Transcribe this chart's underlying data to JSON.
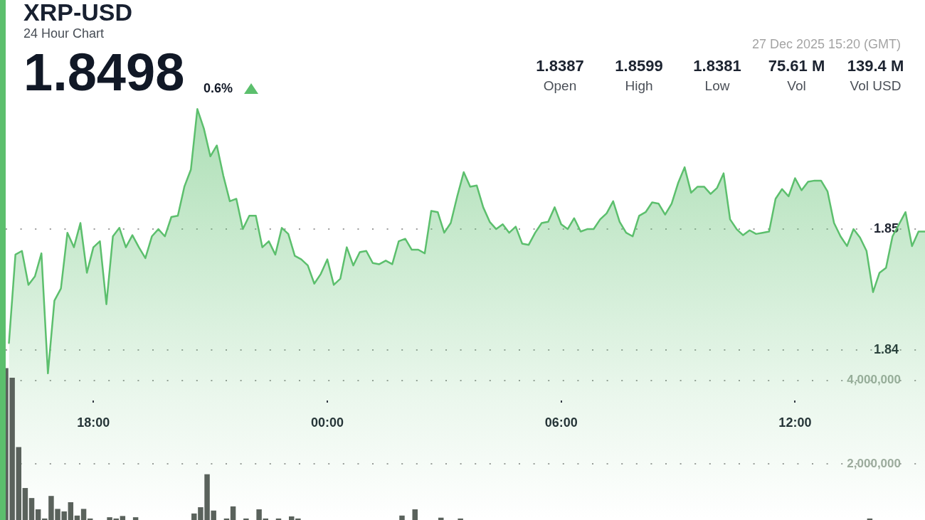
{
  "chart_data": {
    "type": "area",
    "title": "XRP-USD",
    "subtitle": "24 Hour Chart",
    "annotations": [
      "1.8498",
      "0.6%",
      "27 Dec 2025 15:20 (GMT)",
      "1.8387",
      "Open",
      "1.8599",
      "High",
      "1.8381",
      "Low",
      "75.61 M",
      "Vol",
      "139.4 M",
      "Vol USD"
    ],
    "series": [
      {
        "color": "#5cbf6d",
        "x": [
          "2025-12-26T15:50",
          "2025-12-26T16:00",
          "2025-12-26T16:10",
          "2025-12-26T16:20",
          "2025-12-26T16:30",
          "2025-12-26T16:40",
          "2025-12-26T16:50",
          "2025-12-26T17:00",
          "2025-12-26T17:10",
          "2025-12-26T17:20",
          "2025-12-26T17:30",
          "2025-12-26T17:40",
          "2025-12-26T17:50",
          "2025-12-26T18:00",
          "2025-12-26T18:10",
          "2025-12-26T18:20",
          "2025-12-26T18:30",
          "2025-12-26T18:40",
          "2025-12-26T18:50",
          "2025-12-26T19:00",
          "2025-12-26T19:10",
          "2025-12-26T19:20",
          "2025-12-26T19:30",
          "2025-12-26T19:40",
          "2025-12-26T19:50",
          "2025-12-26T20:00",
          "2025-12-26T20:10",
          "2025-12-26T20:20",
          "2025-12-26T20:30",
          "2025-12-26T20:40",
          "2025-12-26T20:50",
          "2025-12-26T21:00",
          "2025-12-26T21:10",
          "2025-12-26T21:20",
          "2025-12-26T21:30",
          "2025-12-26T21:40",
          "2025-12-26T21:50",
          "2025-12-26T22:00",
          "2025-12-26T22:10",
          "2025-12-26T22:20",
          "2025-12-26T22:30",
          "2025-12-26T22:40",
          "2025-12-26T22:50",
          "2025-12-26T23:00",
          "2025-12-26T23:10",
          "2025-12-26T23:20",
          "2025-12-26T23:30",
          "2025-12-26T23:40",
          "2025-12-26T23:50",
          "2025-12-27T00:00",
          "2025-12-27T00:10",
          "2025-12-27T00:20",
          "2025-12-27T00:30",
          "2025-12-27T00:40",
          "2025-12-27T00:50",
          "2025-12-27T01:00",
          "2025-12-27T01:10",
          "2025-12-27T01:20",
          "2025-12-27T01:30",
          "2025-12-27T01:40",
          "2025-12-27T01:50",
          "2025-12-27T02:00",
          "2025-12-27T02:10",
          "2025-12-27T02:20",
          "2025-12-27T02:30",
          "2025-12-27T02:40",
          "2025-12-27T02:50",
          "2025-12-27T03:00",
          "2025-12-27T03:10",
          "2025-12-27T03:20",
          "2025-12-27T03:30",
          "2025-12-27T03:40",
          "2025-12-27T03:50",
          "2025-12-27T04:00",
          "2025-12-27T04:10",
          "2025-12-27T04:20",
          "2025-12-27T04:30",
          "2025-12-27T04:40",
          "2025-12-27T04:50",
          "2025-12-27T05:00",
          "2025-12-27T05:10",
          "2025-12-27T05:20",
          "2025-12-27T05:30",
          "2025-12-27T05:40",
          "2025-12-27T05:50",
          "2025-12-27T06:00",
          "2025-12-27T06:10",
          "2025-12-27T06:20",
          "2025-12-27T06:30",
          "2025-12-27T06:40",
          "2025-12-27T06:50",
          "2025-12-27T07:00",
          "2025-12-27T07:10",
          "2025-12-27T07:20",
          "2025-12-27T07:30",
          "2025-12-27T07:40",
          "2025-12-27T07:50",
          "2025-12-27T08:00",
          "2025-12-27T08:10",
          "2025-12-27T08:20",
          "2025-12-27T08:30",
          "2025-12-27T08:40",
          "2025-12-27T08:50",
          "2025-12-27T09:00",
          "2025-12-27T09:10",
          "2025-12-27T09:20",
          "2025-12-27T09:30",
          "2025-12-27T09:40",
          "2025-12-27T09:50",
          "2025-12-27T10:00",
          "2025-12-27T10:10",
          "2025-12-27T10:20",
          "2025-12-27T10:30",
          "2025-12-27T10:40",
          "2025-12-27T10:50",
          "2025-12-27T11:00",
          "2025-12-27T11:10",
          "2025-12-27T11:20",
          "2025-12-27T11:30",
          "2025-12-27T11:40",
          "2025-12-27T11:50",
          "2025-12-27T12:00",
          "2025-12-27T12:10",
          "2025-12-27T12:20",
          "2025-12-27T12:30",
          "2025-12-27T12:40",
          "2025-12-27T12:50",
          "2025-12-27T13:00",
          "2025-12-27T13:10",
          "2025-12-27T13:20",
          "2025-12-27T13:30",
          "2025-12-27T13:40",
          "2025-12-27T13:50",
          "2025-12-27T14:00",
          "2025-12-27T14:10",
          "2025-12-27T14:20",
          "2025-12-27T14:30",
          "2025-12-27T14:40",
          "2025-12-27T14:50",
          "2025-12-27T15:00",
          "2025-12-27T15:10",
          "2025-12-27T15:20"
        ],
        "values": [
          1.8406,
          1.8479,
          1.8482,
          1.8454,
          1.8461,
          1.848,
          1.8381,
          1.8441,
          1.8451,
          1.8497,
          1.8485,
          1.8505,
          1.8464,
          1.8485,
          1.849,
          1.8438,
          1.8494,
          1.8501,
          1.8485,
          1.8495,
          1.8485,
          1.8476,
          1.8494,
          1.85,
          1.8494,
          1.851,
          1.8511,
          1.8535,
          1.8549,
          1.8599,
          1.8583,
          1.856,
          1.8569,
          1.8544,
          1.8523,
          1.8525,
          1.85,
          1.8511,
          1.8511,
          1.8485,
          1.849,
          1.8479,
          1.8501,
          1.8496,
          1.8478,
          1.8475,
          1.847,
          1.8455,
          1.8463,
          1.8475,
          1.8454,
          1.8459,
          1.8485,
          1.847,
          1.8481,
          1.8482,
          1.8472,
          1.8471,
          1.8474,
          1.8471,
          1.849,
          1.8492,
          1.8483,
          1.8483,
          1.848,
          1.8515,
          1.8514,
          1.8497,
          1.8505,
          1.8527,
          1.8547,
          1.8535,
          1.8536,
          1.8518,
          1.8506,
          1.85,
          1.8504,
          1.8497,
          1.8502,
          1.8488,
          1.8487,
          1.8497,
          1.8505,
          1.8506,
          1.8518,
          1.8504,
          1.85,
          1.8509,
          1.8498,
          1.85,
          1.85,
          1.8508,
          1.8513,
          1.8523,
          1.8506,
          1.8497,
          1.8494,
          1.8511,
          1.8514,
          1.8522,
          1.8521,
          1.8512,
          1.8521,
          1.8538,
          1.8551,
          1.853,
          1.8535,
          1.8535,
          1.8529,
          1.8534,
          1.8546,
          1.8508,
          1.85,
          1.8495,
          1.8499,
          1.8496,
          1.8497,
          1.8498,
          1.8525,
          1.8533,
          1.8527,
          1.8542,
          1.8532,
          1.8539,
          1.854,
          1.854,
          1.8531,
          1.8505,
          1.8494,
          1.8486,
          1.85,
          1.8493,
          1.8482,
          1.8448,
          1.8464,
          1.8468,
          1.8494,
          1.8504,
          1.8514,
          1.8486,
          1.8498,
          1.8498
        ]
      },
      {
        "type": "bar",
        "axis": "y2",
        "color": "#5a625c",
        "x": [
          "2025-12-26T15:45",
          "2025-12-26T15:55",
          "2025-12-26T16:05",
          "2025-12-26T16:15",
          "2025-12-26T16:25",
          "2025-12-26T16:35",
          "2025-12-26T16:45",
          "2025-12-26T16:55",
          "2025-12-26T17:05",
          "2025-12-26T17:15",
          "2025-12-26T17:25",
          "2025-12-26T17:35",
          "2025-12-26T17:45",
          "2025-12-26T17:55",
          "2025-12-26T18:25",
          "2025-12-26T18:35",
          "2025-12-26T18:45",
          "2025-12-26T19:05",
          "2025-12-26T20:35",
          "2025-12-26T20:45",
          "2025-12-26T20:55",
          "2025-12-26T21:05",
          "2025-12-26T21:25",
          "2025-12-26T21:35",
          "2025-12-26T21:55",
          "2025-12-26T22:15",
          "2025-12-26T22:25",
          "2025-12-26T22:45",
          "2025-12-26T23:05",
          "2025-12-26T23:15",
          "2025-12-27T01:55",
          "2025-12-27T02:15",
          "2025-12-27T02:55",
          "2025-12-27T03:25",
          "2025-12-27T13:55"
        ],
        "values": [
          4290000,
          4060000,
          2400000,
          1420000,
          1180000,
          910000,
          690000,
          1230000,
          920000,
          860000,
          1080000,
          760000,
          920000,
          690000,
          720000,
          690000,
          750000,
          720000,
          810000,
          960000,
          1750000,
          880000,
          690000,
          980000,
          690000,
          910000,
          690000,
          690000,
          740000,
          690000,
          760000,
          910000,
          710000,
          690000,
          690000
        ]
      }
    ],
    "xlim": [
      "2025-12-26T15:45",
      "2025-12-27T15:20"
    ],
    "xticks": [
      {
        "value": "2025-12-26T18:00",
        "label": "18:00"
      },
      {
        "value": "2025-12-27T00:00",
        "label": "00:00"
      },
      {
        "value": "2025-12-27T06:00",
        "label": "06:00"
      },
      {
        "value": "2025-12-27T12:00",
        "label": "12:00"
      }
    ],
    "ylim": [
      1.826,
      1.8689
    ],
    "yticks": [
      1.84,
      1.85
    ],
    "y2lim": [
      654000,
      13110000
    ],
    "y2ticks": [
      {
        "value": 2000000,
        "label": "2,000,000"
      },
      {
        "value": 4000000,
        "label": "4,000,000"
      }
    ],
    "grid": "y"
  }
}
